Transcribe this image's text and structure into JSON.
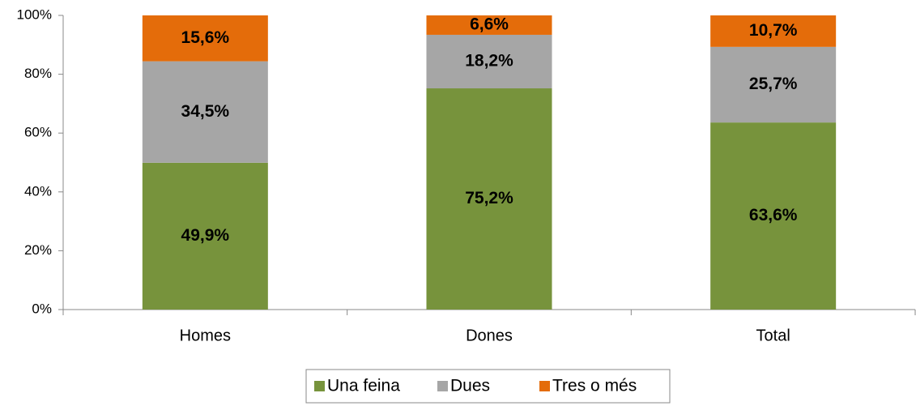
{
  "chart_data": {
    "type": "stacked_bar",
    "categories": [
      "Homes",
      "Dones",
      "Total"
    ],
    "series": [
      {
        "name": "Una feina",
        "color": "#77933c",
        "values": [
          49.9,
          75.2,
          63.6
        ],
        "value_labels": [
          "49,9%",
          "75,2%",
          "63,6%"
        ]
      },
      {
        "name": "Dues",
        "color": "#a6a6a6",
        "values": [
          34.5,
          18.2,
          25.7
        ],
        "value_labels": [
          "34,5%",
          "18,2%",
          "25,7%"
        ]
      },
      {
        "name": "Tres o més",
        "color": "#e46c0a",
        "values": [
          15.6,
          6.6,
          10.7
        ],
        "value_labels": [
          "15,6%",
          "6,6%",
          "10,7%"
        ]
      }
    ],
    "ylim": [
      0,
      100
    ],
    "yticks": [
      {
        "value": 0,
        "label": "0%"
      },
      {
        "value": 20,
        "label": "20%"
      },
      {
        "value": 40,
        "label": "40%"
      },
      {
        "value": 60,
        "label": "60%"
      },
      {
        "value": 80,
        "label": "80%"
      },
      {
        "value": 100,
        "label": "100%"
      }
    ],
    "legend": "bottom"
  }
}
